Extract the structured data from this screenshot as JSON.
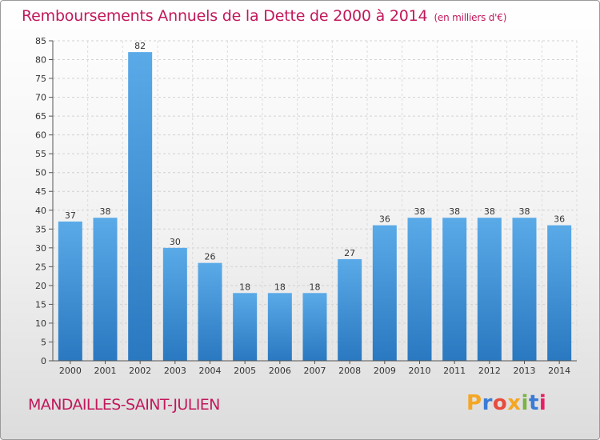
{
  "header": {
    "title": "Remboursements Annuels de la Dette de 2000 à 2014",
    "subtitle": "(en milliers d'€)"
  },
  "footer": {
    "commune": "MANDAILLES-SAINT-JULIEN",
    "logo": [
      "P",
      "r",
      "o",
      "x",
      "i",
      "t",
      "i"
    ],
    "logo_colors": [
      "#f5a623",
      "#3a7bd5",
      "#e74c3c",
      "#f5a623",
      "#7cb342",
      "#3a7bd5",
      "#e91e63"
    ]
  },
  "chart_data": {
    "type": "bar",
    "title": "Remboursements Annuels de la Dette de 2000 à 2014",
    "subtitle": "(en milliers d'€)",
    "categories": [
      "2000",
      "2001",
      "2002",
      "2003",
      "2004",
      "2005",
      "2006",
      "2007",
      "2008",
      "2009",
      "2010",
      "2011",
      "2012",
      "2013",
      "2014"
    ],
    "values": [
      37,
      38,
      82,
      30,
      26,
      18,
      18,
      18,
      27,
      36,
      38,
      38,
      38,
      38,
      36
    ],
    "ylim": [
      0,
      85
    ],
    "yticks": [
      0,
      5,
      10,
      15,
      20,
      25,
      30,
      35,
      40,
      45,
      50,
      55,
      60,
      65,
      70,
      75,
      80,
      85
    ],
    "grid": true,
    "bar_color": "#4a9be0",
    "bar_color_dark": "#2a78c0"
  }
}
